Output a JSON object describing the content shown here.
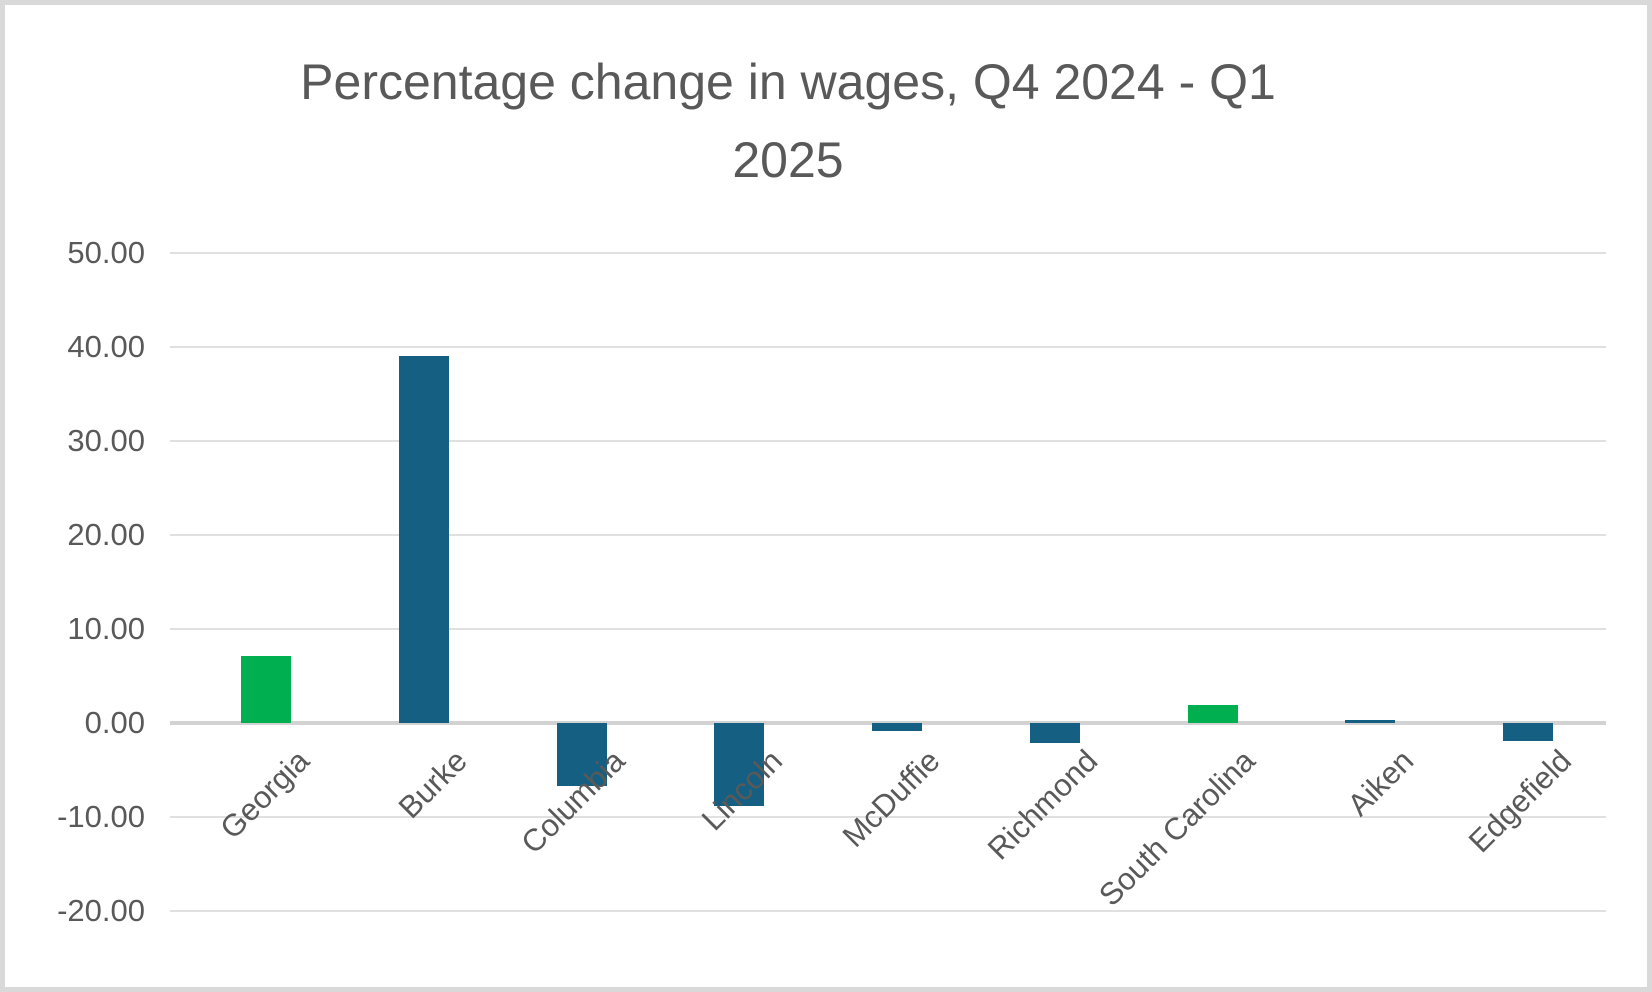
{
  "frame": {
    "background": "#FFFFFF",
    "border_color": "#D9D9D9"
  },
  "chart_data": {
    "type": "bar",
    "title": "Percentage change in wages, Q4 2024 - Q1 2025",
    "title_lines": [
      "Percentage change in wages, Q4 2024 - Q1",
      "2025"
    ],
    "xlabel": "",
    "ylabel": "",
    "categories": [
      "Georgia",
      "Burke",
      "Columbia",
      "Lincoln",
      "McDuffie",
      "Richmond",
      "South Carolina",
      "Aiken",
      "Edgefield"
    ],
    "values": [
      7.1,
      39.0,
      -6.7,
      -8.8,
      -0.9,
      -2.1,
      1.9,
      0.3,
      -1.9
    ],
    "bar_colors": [
      "#00B050",
      "#156082",
      "#156082",
      "#156082",
      "#156082",
      "#156082",
      "#00B050",
      "#156082",
      "#156082"
    ],
    "ylim": [
      -20,
      50
    ],
    "ytick_step": 10,
    "yticks": [
      {
        "value": 50,
        "label": "50.00"
      },
      {
        "value": 40,
        "label": "40.00"
      },
      {
        "value": 30,
        "label": "30.00"
      },
      {
        "value": 20,
        "label": "20.00"
      },
      {
        "value": 10,
        "label": "10.00"
      },
      {
        "value": 0,
        "label": "0.00"
      },
      {
        "value": -10,
        "label": "-10.00"
      },
      {
        "value": -20,
        "label": "-20.00"
      }
    ],
    "grid": true,
    "legend": "none",
    "colors": {
      "title_text": "#595959",
      "axis_text": "#595959",
      "gridline": "#E0E0E0",
      "zero_line": "#D2D2D2",
      "positive_green": "#00B050",
      "series_teal": "#156082"
    }
  }
}
